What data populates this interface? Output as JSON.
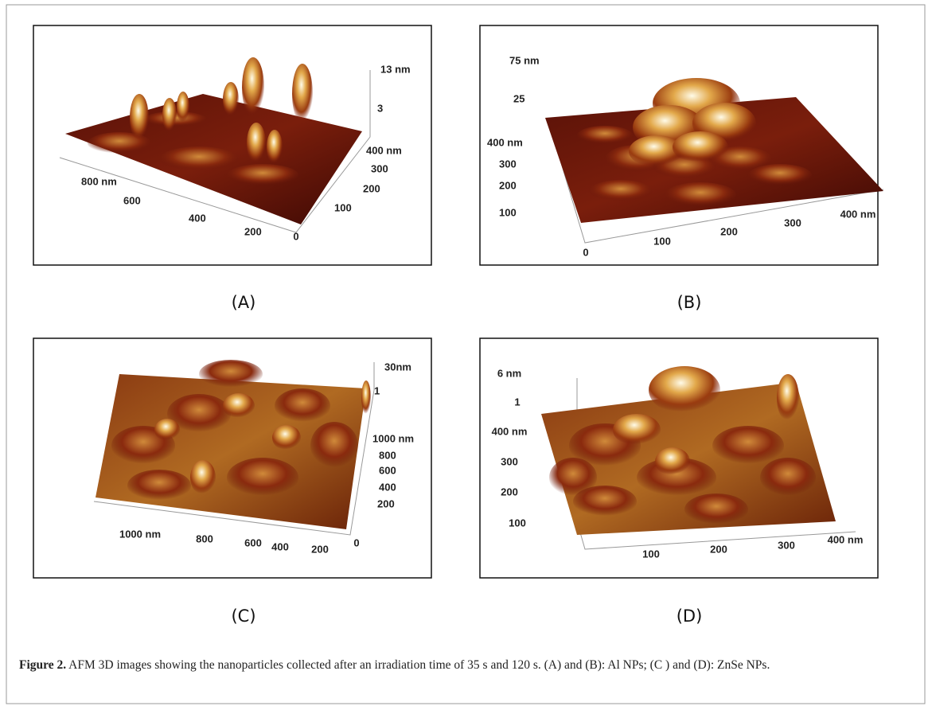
{
  "panels": [
    {
      "label": "(A)",
      "axis_labels": [
        "13 nm",
        "3",
        "400 nm",
        "300",
        "200",
        "100",
        "0",
        "800 nm",
        "600",
        "400",
        "200"
      ]
    },
    {
      "label": "(B)",
      "axis_labels": [
        "75 nm",
        "25",
        "400 nm",
        "300",
        "200",
        "100",
        "0",
        "100",
        "200",
        "300",
        "400 nm"
      ]
    },
    {
      "label": "(C)",
      "axis_labels": [
        "30nm",
        "1",
        "1000 nm",
        "800",
        "600",
        "400",
        "200",
        "0",
        "1000 nm",
        "800",
        "600",
        "400",
        "200"
      ]
    },
    {
      "label": "(D)",
      "axis_labels": [
        "6 nm",
        "1",
        "400 nm",
        "300",
        "200",
        "100",
        "100",
        "200",
        "300",
        "400 nm"
      ]
    }
  ],
  "caption": {
    "label": "Figure 2.",
    "text": "AFM 3D images showing the nanoparticles collected after an irradiation time of 35 s and 120 s. (A) and (B): Al NPs; (C ) and (D): ZnSe NPs."
  }
}
